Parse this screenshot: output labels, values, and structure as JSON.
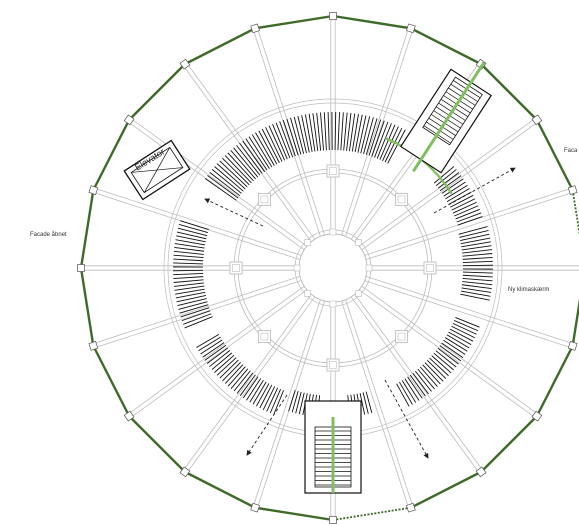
{
  "labels": {
    "facade_opened": "Facade åbnet",
    "new_climate_screen": "Ny klimaskærm",
    "facade_ne": "Faca",
    "elevator": "Elevator"
  },
  "colors": {
    "facade_green": "#3f6b2a",
    "highlight_green": "#7fbf5f",
    "structure_grey": "#bdbdbd",
    "ink": "#111111"
  },
  "plan": {
    "facade_sides": 20,
    "radial_beams": 20,
    "inner_column_ring_count": 8
  }
}
